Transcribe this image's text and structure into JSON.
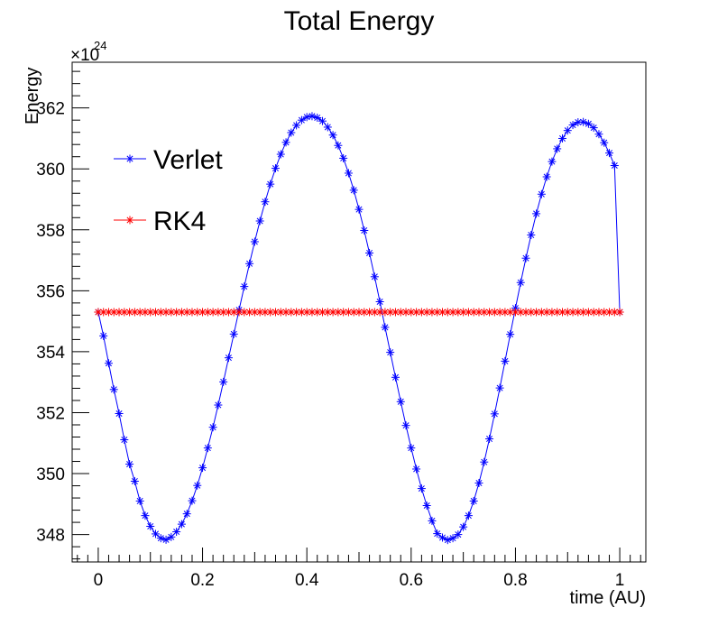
{
  "chart_data": {
    "type": "line",
    "title": "Total Energy",
    "xlabel": "time (AU)",
    "ylabel": "Energy",
    "y_multiplier_label": "×10",
    "y_multiplier_exponent": "24",
    "xlim": [
      -0.05,
      1.05
    ],
    "ylim": [
      347.1,
      363.5
    ],
    "x_ticks": [
      0,
      0.2,
      0.4,
      0.6,
      0.8,
      1
    ],
    "x_tick_labels": [
      "0",
      "0.2",
      "0.4",
      "0.6",
      "0.8",
      "1"
    ],
    "y_ticks": [
      348,
      350,
      352,
      354,
      356,
      358,
      360,
      362
    ],
    "y_tick_labels": [
      "348",
      "350",
      "352",
      "354",
      "356",
      "358",
      "360",
      "362"
    ],
    "grid": false,
    "legend_position": "top-left",
    "marker": "asterisk",
    "x": [
      0,
      0.01,
      0.02,
      0.03,
      0.04,
      0.05,
      0.06,
      0.07,
      0.08,
      0.09,
      0.1,
      0.11,
      0.12,
      0.13,
      0.14,
      0.15,
      0.16,
      0.17,
      0.18,
      0.19,
      0.2,
      0.21,
      0.22,
      0.23,
      0.24,
      0.25,
      0.26,
      0.27,
      0.28,
      0.29,
      0.3,
      0.31,
      0.32,
      0.33,
      0.34,
      0.35,
      0.36,
      0.37,
      0.38,
      0.39,
      0.4,
      0.41,
      0.42,
      0.43,
      0.44,
      0.45,
      0.46,
      0.47,
      0.48,
      0.49,
      0.5,
      0.51,
      0.52,
      0.53,
      0.54,
      0.55,
      0.56,
      0.57,
      0.58,
      0.59,
      0.6,
      0.61,
      0.62,
      0.63,
      0.64,
      0.65,
      0.66,
      0.67,
      0.68,
      0.69,
      0.7,
      0.71,
      0.72,
      0.73,
      0.74,
      0.75,
      0.76,
      0.77,
      0.78,
      0.79,
      0.8,
      0.81,
      0.82,
      0.83,
      0.84,
      0.85,
      0.86,
      0.87,
      0.88,
      0.89,
      0.9,
      0.91,
      0.92,
      0.93,
      0.94,
      0.95,
      0.96,
      0.97,
      0.98,
      0.99,
      1
    ],
    "series": [
      {
        "name": "Verlet",
        "color": "#0000ff",
        "values": [
          355.3,
          354.52,
          353.62,
          352.76,
          351.97,
          351.11,
          350.31,
          349.75,
          349.1,
          348.62,
          348.27,
          348.02,
          347.88,
          347.83,
          347.92,
          348.09,
          348.34,
          348.68,
          349.11,
          349.61,
          350.19,
          350.84,
          351.52,
          352.25,
          353.01,
          353.8,
          354.58,
          355.37,
          356.14,
          356.89,
          357.61,
          358.29,
          358.92,
          359.5,
          360.02,
          360.48,
          360.87,
          361.19,
          361.43,
          361.6,
          361.7,
          361.73,
          361.68,
          361.57,
          361.37,
          361.11,
          360.77,
          360.35,
          359.86,
          359.3,
          358.67,
          357.98,
          357.24,
          356.46,
          355.64,
          354.8,
          353.98,
          353.16,
          352.36,
          351.58,
          350.84,
          350.15,
          349.51,
          348.95,
          348.45,
          348.03,
          347.9,
          347.82,
          347.88,
          348.0,
          348.25,
          348.62,
          349.1,
          349.69,
          350.38,
          351.14,
          351.96,
          352.81,
          353.69,
          354.57,
          355.43,
          356.27,
          357.07,
          357.83,
          358.53,
          359.17,
          359.74,
          360.24,
          360.66,
          361.0,
          361.26,
          361.44,
          361.53,
          361.54,
          361.48,
          361.35,
          361.14,
          360.86,
          360.52,
          360.11,
          355.3
        ]
      },
      {
        "name": "RK4",
        "color": "#ff0000",
        "values": [
          355.3,
          355.3,
          355.3,
          355.3,
          355.3,
          355.3,
          355.3,
          355.3,
          355.3,
          355.3,
          355.3,
          355.3,
          355.3,
          355.3,
          355.3,
          355.3,
          355.3,
          355.3,
          355.3,
          355.3,
          355.3,
          355.3,
          355.3,
          355.3,
          355.3,
          355.3,
          355.3,
          355.3,
          355.3,
          355.3,
          355.3,
          355.3,
          355.3,
          355.3,
          355.3,
          355.3,
          355.3,
          355.3,
          355.3,
          355.3,
          355.3,
          355.3,
          355.3,
          355.3,
          355.3,
          355.3,
          355.3,
          355.3,
          355.3,
          355.3,
          355.3,
          355.3,
          355.3,
          355.3,
          355.3,
          355.3,
          355.3,
          355.3,
          355.3,
          355.3,
          355.3,
          355.3,
          355.3,
          355.3,
          355.3,
          355.3,
          355.3,
          355.3,
          355.3,
          355.3,
          355.3,
          355.3,
          355.3,
          355.3,
          355.3,
          355.3,
          355.3,
          355.3,
          355.3,
          355.3,
          355.3,
          355.3,
          355.3,
          355.3,
          355.3,
          355.3,
          355.3,
          355.3,
          355.3,
          355.3,
          355.3,
          355.3,
          355.3,
          355.3,
          355.3,
          355.3,
          355.3,
          355.3,
          355.3,
          355.3,
          355.3
        ]
      }
    ]
  }
}
